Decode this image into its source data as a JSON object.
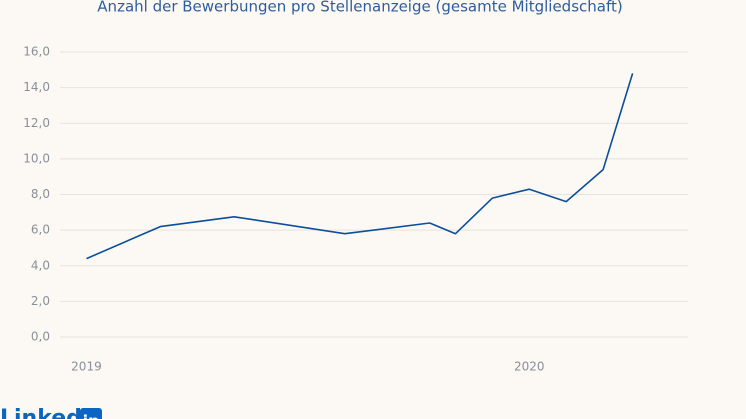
{
  "chart_data": {
    "type": "line",
    "title": "Anzahl der Bewerbungen pro Stellenanzeige (gesamte Mitgliedschaft)",
    "x": [
      0,
      2,
      4,
      7,
      9.3,
      10,
      11,
      12,
      13,
      14,
      14.8
    ],
    "series": [
      {
        "name": "Bewerbungen pro Stellenanzeige",
        "color": "#0b4f9c",
        "values": [
          4.4,
          6.2,
          6.75,
          5.8,
          6.4,
          5.8,
          7.8,
          8.3,
          7.6,
          9.4,
          14.8
        ]
      }
    ],
    "xlim": [
      -0.5,
      16.3
    ],
    "xticks": [
      {
        "value": 0,
        "label": "2019"
      },
      {
        "value": 12,
        "label": "2020"
      }
    ],
    "ylim": [
      0,
      16
    ],
    "yticks": [
      {
        "value": 0,
        "label": "0,0"
      },
      {
        "value": 2,
        "label": "2,0"
      },
      {
        "value": 4,
        "label": "4,0"
      },
      {
        "value": 6,
        "label": "6,0"
      },
      {
        "value": 8,
        "label": "8,0"
      },
      {
        "value": 10,
        "label": "10,0"
      },
      {
        "value": 12,
        "label": "12,0"
      },
      {
        "value": 14,
        "label": "14,0"
      },
      {
        "value": 16,
        "label": "16,0"
      }
    ],
    "grid": true,
    "logo": {
      "text": "Linked",
      "badge": "in"
    }
  }
}
